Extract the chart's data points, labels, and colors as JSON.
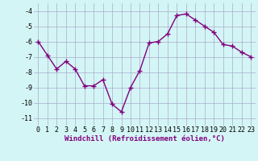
{
  "x": [
    0,
    1,
    2,
    3,
    4,
    5,
    6,
    7,
    8,
    9,
    10,
    11,
    12,
    13,
    14,
    15,
    16,
    17,
    18,
    19,
    20,
    21,
    22,
    23
  ],
  "y": [
    -6.0,
    -6.9,
    -7.8,
    -7.3,
    -7.8,
    -8.9,
    -8.9,
    -8.5,
    -10.1,
    -10.6,
    -9.0,
    -7.9,
    -6.1,
    -6.0,
    -5.5,
    -4.3,
    -4.2,
    -4.6,
    -5.0,
    -5.4,
    -6.2,
    -6.3,
    -6.7,
    -7.0
  ],
  "line_color": "#800080",
  "marker": "+",
  "marker_size": 4,
  "marker_linewidth": 1.0,
  "bg_color": "#d4f5f5",
  "grid_color": "#aaaacc",
  "xlabel": "Windchill (Refroidissement éolien,°C)",
  "xlabel_fontsize": 6.5,
  "tick_fontsize": 6.0,
  "ylim": [
    -11.5,
    -3.5
  ],
  "yticks": [
    -11,
    -10,
    -9,
    -8,
    -7,
    -6,
    -5,
    -4
  ],
  "xticks": [
    0,
    1,
    2,
    3,
    4,
    5,
    6,
    7,
    8,
    9,
    10,
    11,
    12,
    13,
    14,
    15,
    16,
    17,
    18,
    19,
    20,
    21,
    22,
    23
  ],
  "line_width": 1.0
}
